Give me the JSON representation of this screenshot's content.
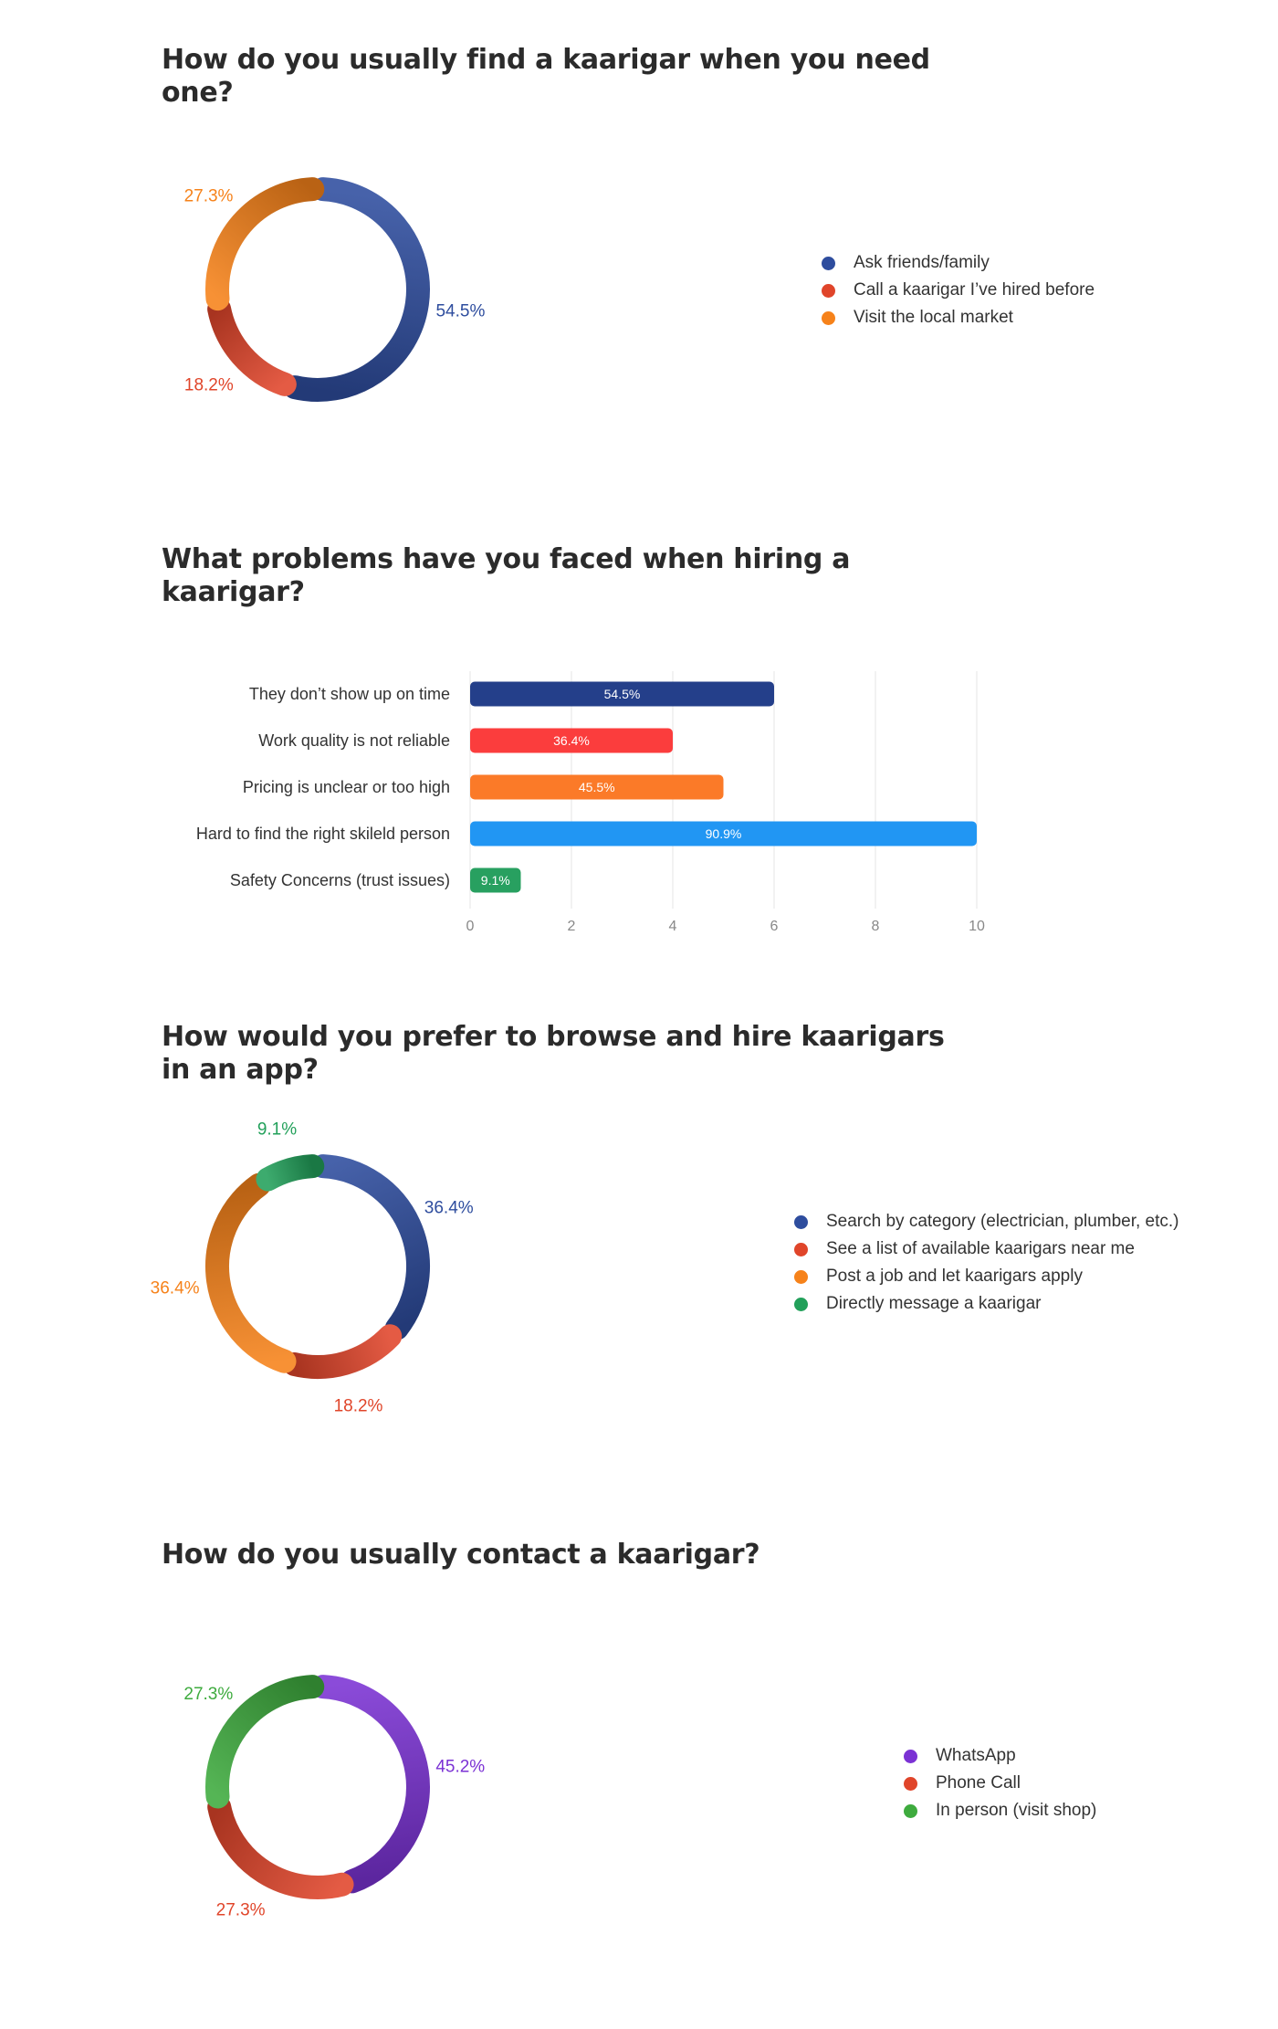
{
  "chart_data": [
    {
      "type": "pie",
      "title": "How do you usually find a kaarigar when you need one?",
      "labels": [
        "Ask friends/family",
        "Call a kaarigar I’ve hired before",
        "Visit the local market"
      ],
      "values": [
        54.5,
        18.2,
        27.3
      ],
      "value_labels": [
        "54.5%",
        "18.2%",
        "27.3%"
      ],
      "colors": [
        "#2e4d9e",
        "#e0452a",
        "#f6821a"
      ],
      "legend_position": "right"
    },
    {
      "type": "bar",
      "orientation": "horizontal",
      "title": "What problems have you faced when hiring a kaarigar?",
      "categories": [
        "They don’t show up on time",
        "Work quality is not reliable",
        "Pricing is unclear or too high",
        "Hard to find the right skileld person",
        "Safety Concerns (trust issues)"
      ],
      "values": [
        6,
        4,
        5,
        10,
        1
      ],
      "value_labels": [
        "54.5%",
        "36.4%",
        "45.5%",
        "90.9%",
        "9.1%"
      ],
      "colors": [
        "#243f8a",
        "#fb3d3d",
        "#fb7a28",
        "#2196f3",
        "#28a060"
      ],
      "xlim": [
        0,
        10
      ],
      "xticks": [
        0,
        2,
        4,
        6,
        8,
        10
      ],
      "grid": true
    },
    {
      "type": "pie",
      "title": "How would you prefer to browse and hire kaarigars in an app?",
      "labels": [
        "Search by category (electrician, plumber, etc.)",
        "See a list of available kaarigars near me",
        "Post a job and let kaarigars apply",
        "Directly message a kaarigar"
      ],
      "values": [
        36.4,
        18.2,
        36.4,
        9.1
      ],
      "value_labels": [
        "36.4%",
        "18.2%",
        "36.4%",
        "9.1%"
      ],
      "colors": [
        "#2e4d9e",
        "#e0452a",
        "#f6821a",
        "#22a05a"
      ],
      "legend_position": "right"
    },
    {
      "type": "pie",
      "title": "How do you usually contact a kaarigar?",
      "labels": [
        "WhatsApp",
        "Phone Call",
        "In person (visit shop)"
      ],
      "values": [
        45.2,
        27.3,
        27.3
      ],
      "value_labels": [
        "45.2%",
        "27.3%",
        "27.3%"
      ],
      "colors": [
        "#7b32d4",
        "#e0452a",
        "#3eab3e"
      ],
      "legend_position": "right"
    }
  ]
}
